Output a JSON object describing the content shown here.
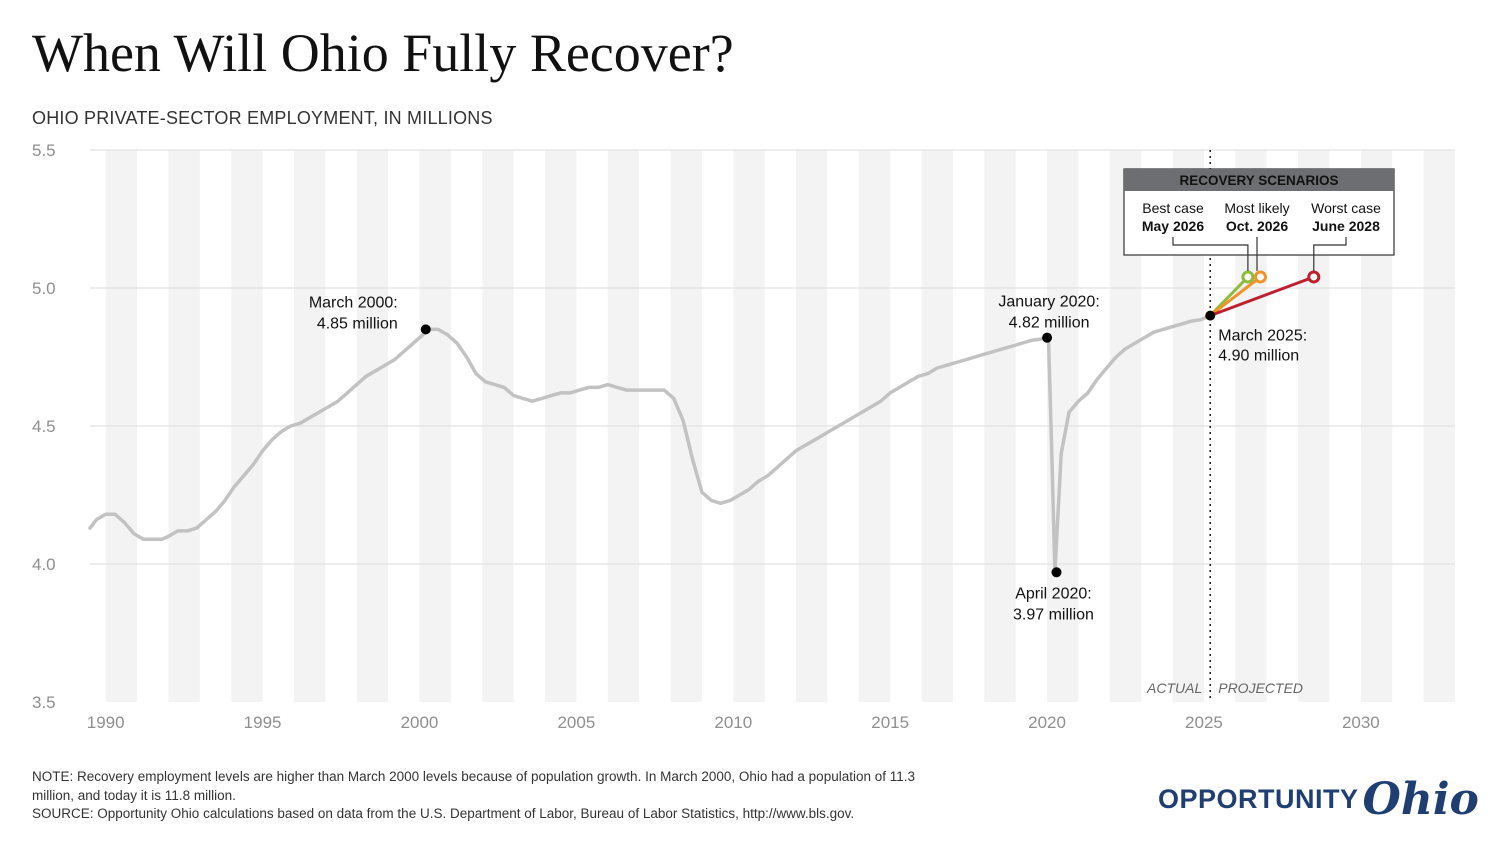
{
  "title": "When Will Ohio Fully Recover?",
  "subtitle": "OHIO PRIVATE-SECTOR EMPLOYMENT, IN MILLIONS",
  "footer": {
    "note": "NOTE: Recovery employment levels are higher than March 2000 levels because of population growth. In March 2000, Ohio had a population of 11.3 million, and today it is 11.8 million.",
    "source": "SOURCE: Opportunity Ohio calculations based on data from the U.S. Department of Labor, Bureau of Labor Statistics, http://www.bls.gov."
  },
  "logo": {
    "word": "OPPORTUNITY",
    "script": "Ohio",
    "color": "#1f3f73"
  },
  "chart_data": {
    "type": "line",
    "ylabel": "OHIO PRIVATE-SECTOR EMPLOYMENT, IN MILLIONS",
    "xlim": [
      1989.5,
      2033.0
    ],
    "ylim": [
      3.5,
      5.5
    ],
    "x_ticks": [
      "1990",
      "1995",
      "2000",
      "2005",
      "2010",
      "2015",
      "2020",
      "2025",
      "2030"
    ],
    "y_ticks": [
      "3.5",
      "4.0",
      "4.5",
      "5.0",
      "5.5"
    ],
    "grid": true,
    "colors": {
      "actual": "#c2c2c2",
      "best": "#8dbb3c",
      "likely": "#f0942a",
      "worst": "#bf1e2d",
      "band": "#f3f3f3",
      "box_header": "#6d6e71"
    },
    "series": [
      {
        "x": [
          1989.5,
          1989.7,
          1990.0,
          1990.3,
          1990.6,
          1990.9,
          1991.2,
          1991.5,
          1991.8,
          1992.0,
          1992.3,
          1992.6,
          1992.9,
          1993.2,
          1993.5,
          1993.8,
          1994.1,
          1994.4,
          1994.7,
          1995.0,
          1995.3,
          1995.6,
          1995.9,
          1996.2,
          1996.5,
          1996.8,
          1997.1,
          1997.4,
          1997.7,
          1998.0,
          1998.3,
          1998.6,
          1998.9,
          1999.2,
          1999.5,
          1999.7,
          2000.0,
          2000.3,
          2000.6,
          2000.9,
          2001.2,
          2001.5,
          2001.8,
          2002.1,
          2002.4,
          2002.7,
          2003.0,
          2003.3,
          2003.6,
          2003.9,
          2004.2,
          2004.5,
          2004.8,
          2005.1,
          2005.4,
          2005.7,
          2006.0,
          2006.3,
          2006.6,
          2006.9,
          2007.2,
          2007.5,
          2007.8,
          2008.1,
          2008.4,
          2008.7,
          2009.0,
          2009.3,
          2009.6,
          2009.9,
          2010.2,
          2010.5,
          2010.8,
          2011.1,
          2011.4,
          2011.7,
          2012.0,
          2012.3,
          2012.6,
          2012.9,
          2013.2,
          2013.5,
          2013.8,
          2014.1,
          2014.4,
          2014.7,
          2015.0,
          2015.3,
          2015.6,
          2015.9,
          2016.2,
          2016.5,
          2016.8,
          2017.1,
          2017.4,
          2017.7,
          2018.0,
          2018.3,
          2018.6,
          2018.9,
          2019.2,
          2019.5,
          2019.8,
          2020.0,
          2020.05,
          2020.15,
          2020.25,
          2020.45,
          2020.7,
          2021.0,
          2021.3,
          2021.6,
          2021.9,
          2022.2,
          2022.5,
          2022.8,
          2023.1,
          2023.4,
          2023.7,
          2024.0,
          2024.3,
          2024.6,
          2024.9,
          2025.2
        ],
        "y": [
          4.13,
          4.16,
          4.18,
          4.18,
          4.15,
          4.11,
          4.09,
          4.09,
          4.09,
          4.1,
          4.12,
          4.12,
          4.13,
          4.16,
          4.19,
          4.23,
          4.28,
          4.32,
          4.36,
          4.41,
          4.45,
          4.48,
          4.5,
          4.51,
          4.53,
          4.55,
          4.57,
          4.59,
          4.62,
          4.65,
          4.68,
          4.7,
          4.72,
          4.74,
          4.77,
          4.79,
          4.82,
          4.85,
          4.85,
          4.83,
          4.8,
          4.75,
          4.69,
          4.66,
          4.65,
          4.64,
          4.61,
          4.6,
          4.59,
          4.6,
          4.61,
          4.62,
          4.62,
          4.63,
          4.64,
          4.64,
          4.65,
          4.64,
          4.63,
          4.63,
          4.63,
          4.63,
          4.63,
          4.6,
          4.52,
          4.38,
          4.26,
          4.23,
          4.22,
          4.23,
          4.25,
          4.27,
          4.3,
          4.32,
          4.35,
          4.38,
          4.41,
          4.43,
          4.45,
          4.47,
          4.49,
          4.51,
          4.53,
          4.55,
          4.57,
          4.59,
          4.62,
          4.64,
          4.66,
          4.68,
          4.69,
          4.71,
          4.72,
          4.73,
          4.74,
          4.75,
          4.76,
          4.77,
          4.78,
          4.79,
          4.8,
          4.81,
          4.815,
          4.82,
          4.8,
          4.4,
          3.97,
          4.4,
          4.55,
          4.59,
          4.62,
          4.67,
          4.71,
          4.75,
          4.78,
          4.8,
          4.82,
          4.84,
          4.85,
          4.86,
          4.87,
          4.88,
          4.885,
          4.9
        ],
        "color": "#c2c2c2"
      },
      {
        "name": "Best case",
        "x": [
          2025.2,
          2026.4
        ],
        "y": [
          4.9,
          5.04
        ],
        "color": "#8dbb3c"
      },
      {
        "name": "Most likely",
        "x": [
          2025.2,
          2026.8
        ],
        "y": [
          4.9,
          5.04
        ],
        "color": "#f0942a"
      },
      {
        "name": "Worst case",
        "x": [
          2025.2,
          2028.5
        ],
        "y": [
          4.9,
          5.04
        ],
        "color": "#bf1e2d"
      }
    ],
    "annotations": [
      {
        "x": 2000.2,
        "y": 4.85,
        "lines": [
          "March 2000:",
          "4.85 million"
        ]
      },
      {
        "x": 2020.0,
        "y": 4.82,
        "lines": [
          "January 2020:",
          "4.82 million"
        ]
      },
      {
        "x": 2020.3,
        "y": 3.97,
        "lines": [
          "April 2020:",
          "3.97 million"
        ]
      },
      {
        "x": 2025.2,
        "y": 4.9,
        "lines": [
          "March 2025:",
          "4.90 million"
        ]
      }
    ],
    "divider": {
      "x": 2025.2,
      "left_label": "ACTUAL",
      "right_label": "PROJECTED"
    },
    "scenarios_box": {
      "title": "RECOVERY SCENARIOS",
      "items": [
        {
          "label": "Best case",
          "date": "May 2026",
          "x": 2026.4,
          "y": 5.04,
          "color": "#8dbb3c"
        },
        {
          "label": "Most likely",
          "date": "Oct. 2026",
          "x": 2026.8,
          "y": 5.04,
          "color": "#f0942a"
        },
        {
          "label": "Worst case",
          "date": "June 2028",
          "x": 2028.5,
          "y": 5.04,
          "color": "#bf1e2d"
        }
      ]
    }
  }
}
